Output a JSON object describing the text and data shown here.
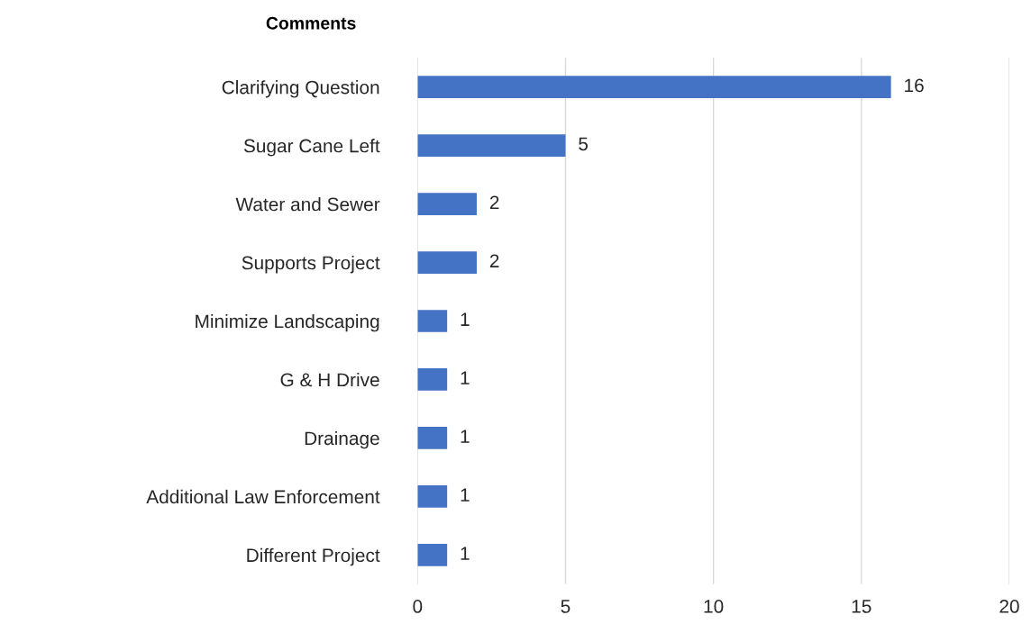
{
  "chart_data": {
    "type": "bar",
    "orientation": "horizontal",
    "title": "Comments",
    "categories": [
      "Clarifying Question",
      "Sugar Cane Left",
      "Water and Sewer",
      "Supports Project",
      "Minimize Landscaping",
      "G & H Drive",
      "Drainage",
      "Additional Law Enforcement",
      "Different Project"
    ],
    "values": [
      16,
      5,
      2,
      2,
      1,
      1,
      1,
      1,
      1
    ],
    "color": "#4472c4",
    "xlim": [
      0,
      20
    ],
    "xticks": [
      0,
      5,
      10,
      15,
      20
    ],
    "grid": "x",
    "data_labels": true,
    "legend": false
  }
}
